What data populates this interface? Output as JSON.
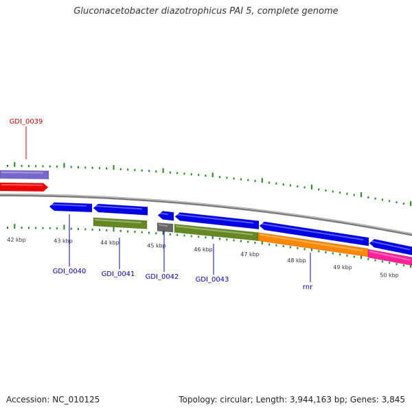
{
  "title": "Gluconacetobacter diazotrophicus PAI 5, complete genome",
  "footer": {
    "accession": "Accession: NC_010125",
    "topology": "Topology: circular; Length: 3,944,163 bp; Genes: 3,845"
  },
  "colors": {
    "blue_gene": "#0000e6",
    "red_gene": "#ee0000",
    "purple_gene": "#7766cc",
    "olive_gene": "#668822",
    "gray_gene": "#666666",
    "orange_gene": "#ff8800",
    "pink_gene": "#ff2299",
    "backbone": "#888888",
    "tick": "#228822",
    "label_red": "#cc0000",
    "label_blue": "#0000aa"
  },
  "scale": {
    "kbp_labels": [
      "42 kbp",
      "43 kbp",
      "44 kbp",
      "45 kbp",
      "46 kbp",
      "47 kbp",
      "48 kbp",
      "49 kbp",
      "50 kbp"
    ]
  },
  "gene_labels": [
    {
      "name": "GDI_0039",
      "color": "red"
    },
    {
      "name": "GDI_0040",
      "color": "blue"
    },
    {
      "name": "GDI_0041",
      "color": "blue"
    },
    {
      "name": "GDI_0042",
      "color": "blue"
    },
    {
      "name": "GDI_0043",
      "color": "blue"
    },
    {
      "name": "rnr",
      "color": "blue"
    }
  ]
}
